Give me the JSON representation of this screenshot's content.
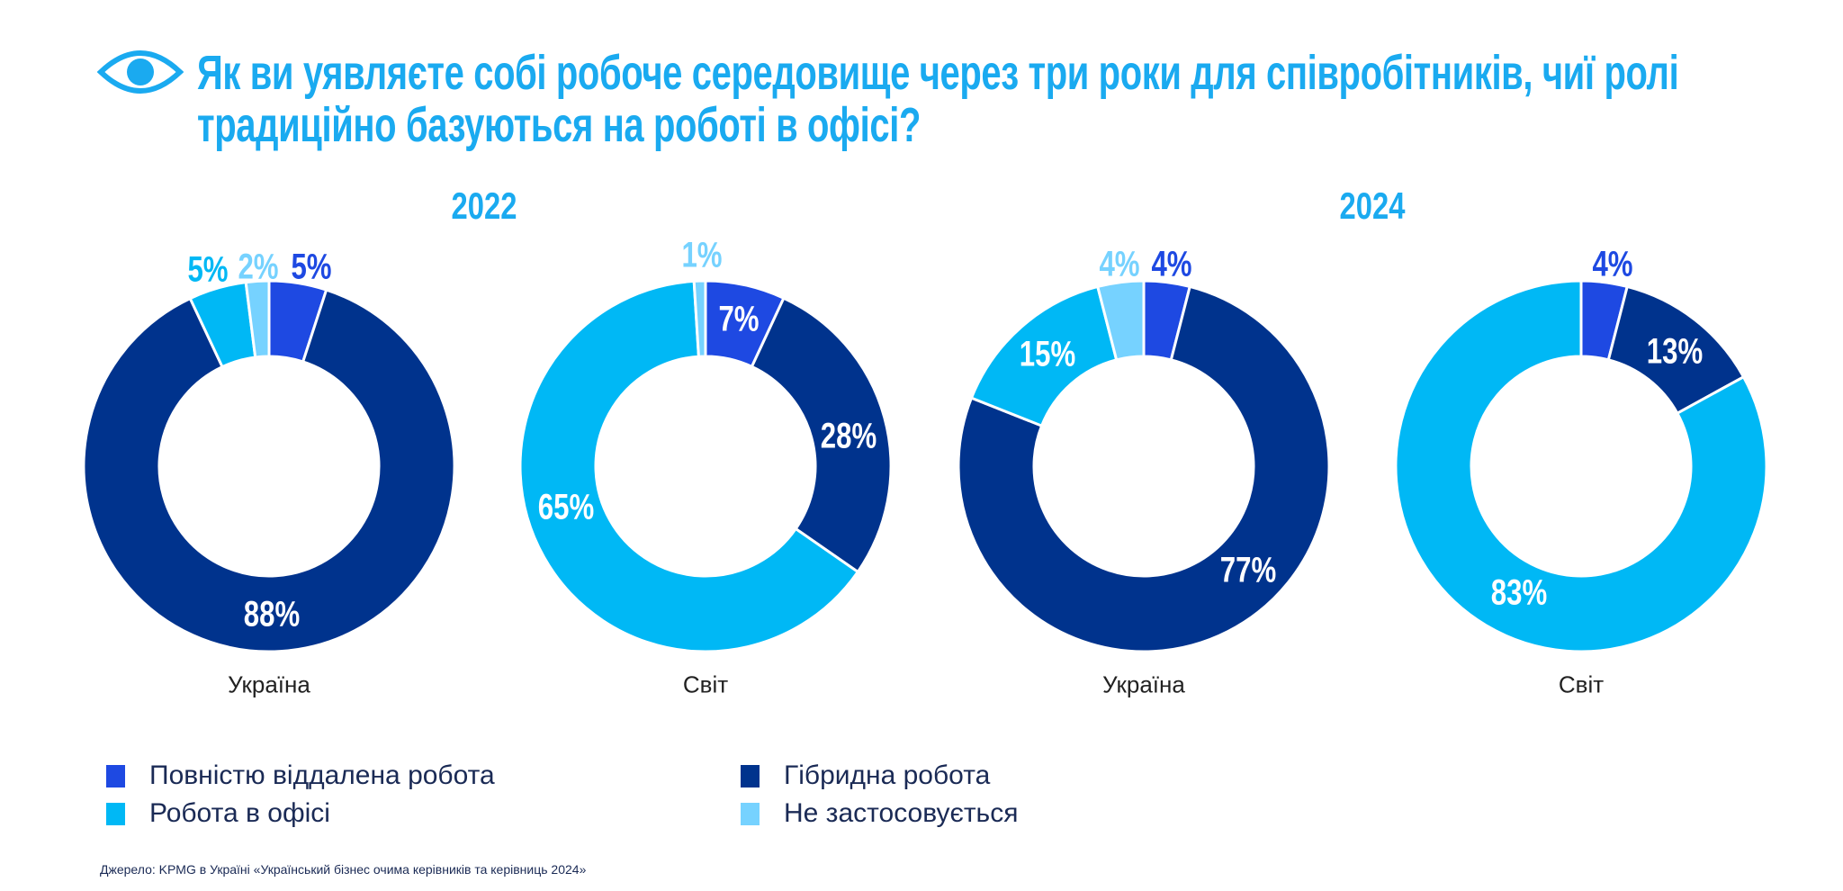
{
  "title": {
    "line1": "Як ви уявляєте собі робоче середовище через три роки для співробітників, чиї ролі",
    "line2": "традиційно базуються на роботі в офісі?",
    "icon": "eye-icon"
  },
  "colors": {
    "remote": "#1e49e2",
    "hybrid": "#00338d",
    "office": "#00b8f5",
    "na": "#76d2ff",
    "accent": "#1aaaf0"
  },
  "years": [
    "2022",
    "2024"
  ],
  "legend": [
    {
      "key": "remote",
      "label": "Повністю віддалена робота"
    },
    {
      "key": "hybrid",
      "label": "Гібридна робота"
    },
    {
      "key": "office",
      "label": "Робота в офісі"
    },
    {
      "key": "na",
      "label": "Не застосовується"
    }
  ],
  "source": "Джерело: KPMG в Україні «Український бізнес очима керівників та керівниць 2024»",
  "chart_data": [
    {
      "type": "pie",
      "year": "2022",
      "region": "Україна",
      "categories": [
        "remote",
        "hybrid",
        "office",
        "na"
      ],
      "values": [
        5,
        88,
        5,
        2
      ],
      "labels": [
        "5%",
        "88%",
        "5%",
        "2%"
      ]
    },
    {
      "type": "pie",
      "year": "2022",
      "region": "Світ",
      "categories": [
        "remote",
        "hybrid",
        "office",
        "na"
      ],
      "values": [
        7,
        28,
        65,
        1
      ],
      "labels": [
        "7%",
        "28%",
        "65%",
        "1%"
      ]
    },
    {
      "type": "pie",
      "year": "2024",
      "region": "Україна",
      "categories": [
        "remote",
        "hybrid",
        "office",
        "na"
      ],
      "values": [
        4,
        77,
        15,
        4
      ],
      "labels": [
        "4%",
        "77%",
        "15%",
        "4%"
      ]
    },
    {
      "type": "pie",
      "year": "2024",
      "region": "Світ",
      "categories": [
        "remote",
        "hybrid",
        "office",
        "na"
      ],
      "values": [
        4,
        13,
        83,
        0
      ],
      "labels": [
        "4%",
        "13%",
        "83%",
        ""
      ]
    }
  ]
}
